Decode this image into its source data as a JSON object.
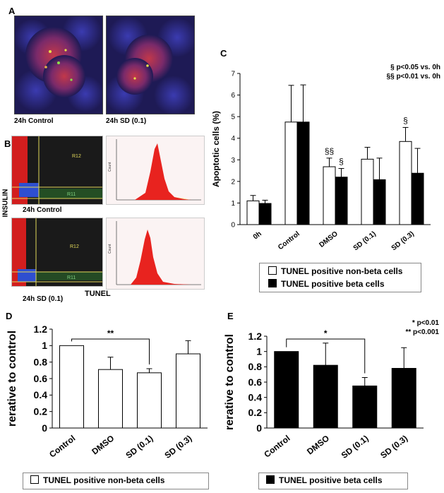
{
  "panels": {
    "a_letter": "A",
    "b_letter": "B",
    "c_letter": "C",
    "d_letter": "D",
    "e_letter": "E"
  },
  "panel_a": {
    "left_caption": "24h Control",
    "right_caption": "24h SD (0.1)"
  },
  "panel_b": {
    "y_label": "INSULIN",
    "x_label": "TUNEL",
    "top_caption": "24h Control",
    "bottom_caption": "24h SD (0.1)",
    "gate_r12": "R12",
    "gate_r11": "R11",
    "hist_axis": "Count"
  },
  "colors": {
    "white_bar": "#ffffff",
    "black_bar": "#000000",
    "micro_bg": "#1e1a55",
    "flow_red": "#e8231f"
  },
  "chart_data": [
    {
      "id": "C",
      "type": "bar",
      "ylabel": "Apoptotic cells (%)",
      "ylim": [
        0,
        7
      ],
      "yticks": [
        "0",
        "1",
        "2",
        "3",
        "4",
        "5",
        "6",
        "7"
      ],
      "categories": [
        "0h",
        "Control",
        "DMSO",
        "SD (0.1)",
        "SD (0.3)"
      ],
      "series": [
        {
          "name": "TUNEL positive non-beta cells",
          "color": "#ffffff",
          "values": [
            1.1,
            4.75,
            2.68,
            3.03,
            3.85
          ],
          "errors": [
            0.25,
            1.7,
            0.4,
            0.55,
            0.65
          ]
        },
        {
          "name": "TUNEL positive beta cells",
          "color": "#000000",
          "values": [
            0.98,
            4.75,
            2.2,
            2.08,
            2.38
          ],
          "errors": [
            0.15,
            1.72,
            0.4,
            1.0,
            1.15
          ]
        }
      ],
      "annotations": [
        {
          "text": "§§",
          "category": 2,
          "series": 0
        },
        {
          "text": "§",
          "category": 2,
          "series": 1
        },
        {
          "text": "§",
          "category": 4,
          "series": 0
        }
      ],
      "sig_note": [
        "§ p<0.05 vs. 0h",
        "§§ p<0.01 vs. 0h"
      ]
    },
    {
      "id": "D",
      "type": "bar",
      "ylabel": "rerative to control",
      "ylim": [
        0,
        1.2
      ],
      "yticks": [
        "0",
        "0.2",
        "0.4",
        "0.6",
        "0.8",
        "1",
        "1.2"
      ],
      "categories": [
        "Control",
        "DMSO",
        "SD (0.1)",
        "SD (0.3)"
      ],
      "series": [
        {
          "name": "TUNEL positive non-beta cells",
          "color": "#ffffff",
          "values": [
            1.0,
            0.71,
            0.67,
            0.9
          ],
          "errors": [
            0,
            0.15,
            0.05,
            0.16
          ]
        }
      ],
      "bracket": {
        "from": 0,
        "to": 2,
        "label": "**"
      }
    },
    {
      "id": "E",
      "type": "bar",
      "ylabel": "rerative to control",
      "ylim": [
        0,
        1.2
      ],
      "yticks": [
        "0",
        "0.2",
        "0.4",
        "0.6",
        "0.8",
        "1",
        "1.2"
      ],
      "categories": [
        "Control",
        "DMSO",
        "SD (0.1)",
        "SD (0.3)"
      ],
      "series": [
        {
          "name": "TUNEL positive beta cells",
          "color": "#000000",
          "values": [
            1.0,
            0.82,
            0.55,
            0.78
          ],
          "errors": [
            0,
            0.29,
            0.11,
            0.27
          ]
        }
      ],
      "bracket": {
        "from": 0,
        "to": 2,
        "label": "*"
      },
      "sig_note": [
        "* p<0.01",
        "** p<0.001"
      ]
    }
  ]
}
